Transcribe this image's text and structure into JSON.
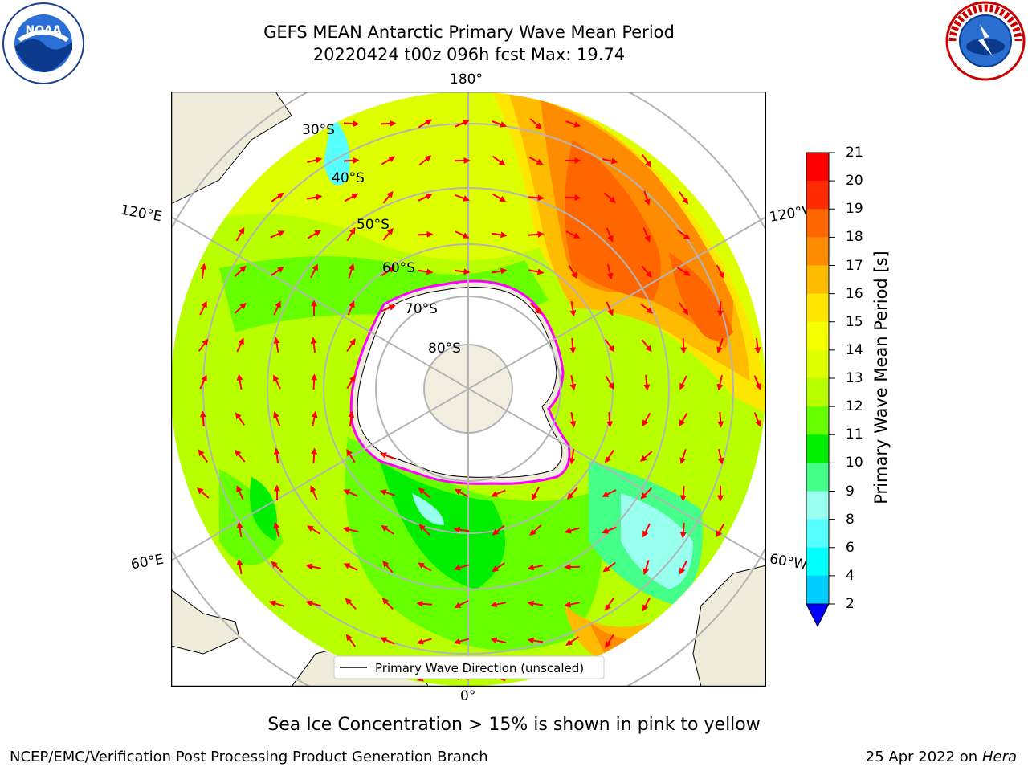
{
  "title": {
    "line1": "GEFS MEAN Antarctic Primary Wave Mean Period",
    "line2": "20220424 t00z 096h fcst   Max: 19.74"
  },
  "logos": {
    "left": "NOAA",
    "right": "NATIONAL WEATHER SERVICE"
  },
  "map": {
    "projection": "south-polar-stereographic",
    "lat_labels": [
      "30°S",
      "40°S",
      "50°S",
      "60°S",
      "70°S",
      "80°S"
    ],
    "lon_labels": {
      "top": "180°",
      "bottom": "0°",
      "upper_left": "120°E",
      "upper_right": "120°W",
      "lower_left": "60°E",
      "lower_right": "60°W"
    },
    "legend_label": "Primary Wave Direction (unscaled)",
    "arrow_color": "#ff0000",
    "land_color": "#efecdc",
    "ice_edge_colors": [
      "#ff00ff",
      "#ffa500"
    ]
  },
  "colorbar": {
    "title": "Primary Wave Mean Period [s]",
    "ticks": [
      "21",
      "20",
      "19",
      "18",
      "17",
      "16",
      "15",
      "14",
      "13",
      "12",
      "11",
      "10",
      "9",
      "8",
      "6",
      "4",
      "2"
    ],
    "colors": [
      "#ff0000",
      "#ff2a00",
      "#ff6600",
      "#ff8c00",
      "#ffbb00",
      "#ffe600",
      "#f5ff00",
      "#ddff00",
      "#b8ff00",
      "#66ff00",
      "#00ee00",
      "#44ff88",
      "#99ffee",
      "#55ffff",
      "#00ffff",
      "#00ccff",
      "#0066ff"
    ],
    "under_color": "#0000ff"
  },
  "note": "Sea Ice Concentration > 15% is shown in pink to yellow",
  "footer": {
    "left": "NCEP/EMC/Verification Post Processing Product Generation Branch",
    "date": "25 Apr 2022 on ",
    "host": "Hera"
  }
}
